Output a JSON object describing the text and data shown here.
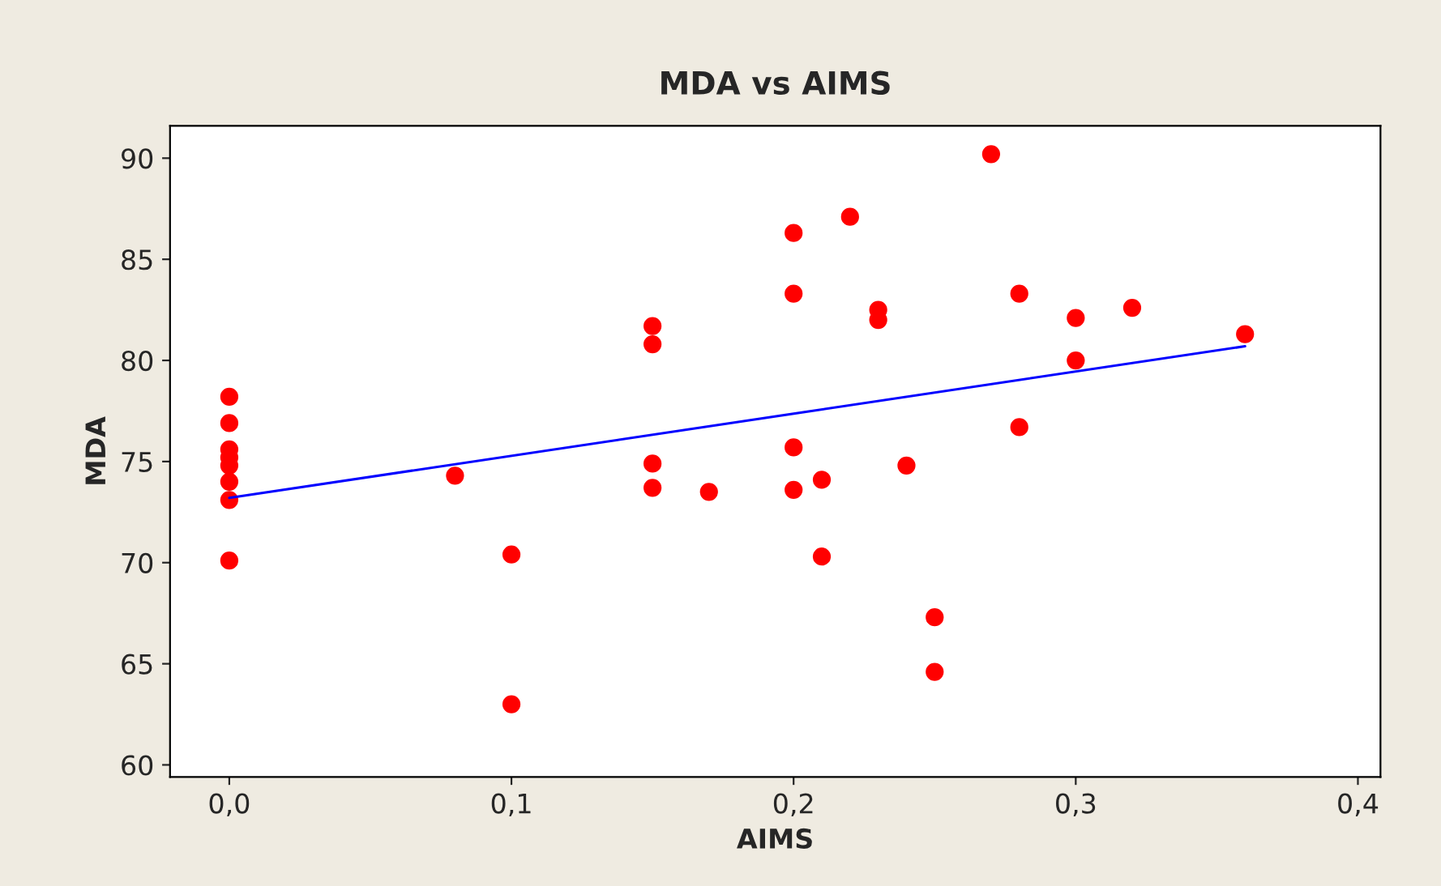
{
  "chart_data": {
    "type": "scatter",
    "title": "MDA vs AIMS",
    "xlabel": "AIMS",
    "ylabel": "MDA",
    "xlim": [
      -0.021,
      0.408
    ],
    "ylim": [
      59.4,
      91.6
    ],
    "xticks": [
      {
        "value": 0.0,
        "label": "0,0"
      },
      {
        "value": 0.1,
        "label": "0,1"
      },
      {
        "value": 0.2,
        "label": "0,2"
      },
      {
        "value": 0.3,
        "label": "0,3"
      },
      {
        "value": 0.4,
        "label": "0,4"
      }
    ],
    "yticks": [
      60,
      65,
      70,
      75,
      80,
      85,
      90
    ],
    "grid": false,
    "legend": false,
    "marker": "circle",
    "series": [
      {
        "color": "#ff0000",
        "x": [
          0,
          0,
          0,
          0,
          0,
          0,
          0,
          0,
          0.08,
          0.1,
          0.1,
          0.15,
          0.15,
          0.15,
          0.15,
          0.17,
          0.2,
          0.2,
          0.2,
          0.2,
          0.21,
          0.21,
          0.22,
          0.23,
          0.23,
          0.24,
          0.25,
          0.25,
          0.27,
          0.28,
          0.28,
          0.3,
          0.3,
          0.32,
          0.36
        ],
        "values": [
          78.2,
          76.9,
          75.6,
          75.2,
          74.8,
          74.0,
          73.1,
          70.1,
          74.3,
          70.4,
          63.0,
          81.7,
          80.8,
          74.9,
          73.7,
          73.5,
          86.3,
          83.3,
          75.7,
          73.6,
          74.1,
          70.3,
          87.1,
          82.5,
          82.0,
          74.8,
          67.3,
          64.6,
          90.2,
          83.3,
          76.7,
          82.1,
          80.0,
          82.6,
          81.3
        ]
      },
      {
        "type": "line",
        "color": "#0000ff",
        "marker": "none",
        "line_style": "solid",
        "x": [
          0,
          0.36
        ],
        "values": [
          73.2,
          80.7
        ]
      }
    ]
  }
}
